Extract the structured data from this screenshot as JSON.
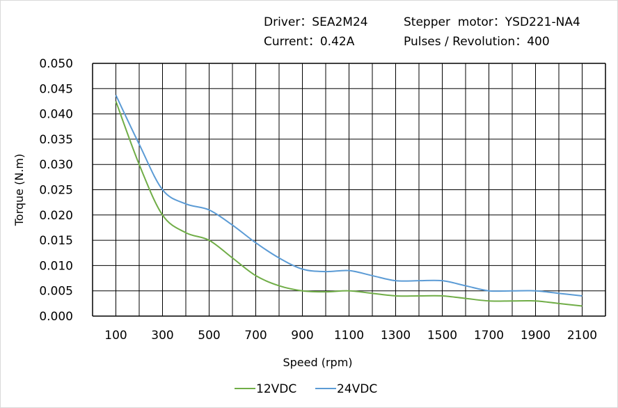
{
  "header": {
    "driver": "Driver：SEA2M24",
    "motor": "Stepper  motor：YSD221-NA4",
    "current": "Current：0.42A",
    "pulses": "Pulses / Revolution：400"
  },
  "chart_data": {
    "type": "line",
    "title": "",
    "xlabel": "Speed  (rpm)",
    "ylabel": "Torque (N.m)",
    "xlim": [
      0,
      2200
    ],
    "ylim": [
      0,
      0.05
    ],
    "x_ticks": [
      "100",
      "300",
      "500",
      "700",
      "900",
      "1100",
      "1300",
      "1500",
      "1700",
      "1900",
      "2100"
    ],
    "y_ticks": [
      "0.000",
      "0.005",
      "0.010",
      "0.015",
      "0.020",
      "0.025",
      "0.030",
      "0.035",
      "0.040",
      "0.045",
      "0.050"
    ],
    "grid": true,
    "legend_position": "bottom",
    "x": [
      100,
      200,
      300,
      400,
      500,
      600,
      700,
      800,
      900,
      1000,
      1100,
      1200,
      1300,
      1400,
      1500,
      1600,
      1700,
      1800,
      1900,
      2000,
      2100
    ],
    "series": [
      {
        "name": "12VDC",
        "color": "#70ad47",
        "values": [
          0.0425,
          0.03,
          0.02,
          0.0165,
          0.015,
          0.0115,
          0.008,
          0.006,
          0.005,
          0.0048,
          0.005,
          0.0045,
          0.004,
          0.004,
          0.004,
          0.0035,
          0.003,
          0.003,
          0.003,
          0.0025,
          0.002
        ]
      },
      {
        "name": "24VDC",
        "color": "#5b9bd5",
        "values": [
          0.0437,
          0.034,
          0.025,
          0.0222,
          0.021,
          0.018,
          0.0145,
          0.0115,
          0.0093,
          0.0088,
          0.009,
          0.008,
          0.007,
          0.007,
          0.007,
          0.006,
          0.005,
          0.005,
          0.005,
          0.0045,
          0.004
        ]
      }
    ]
  }
}
